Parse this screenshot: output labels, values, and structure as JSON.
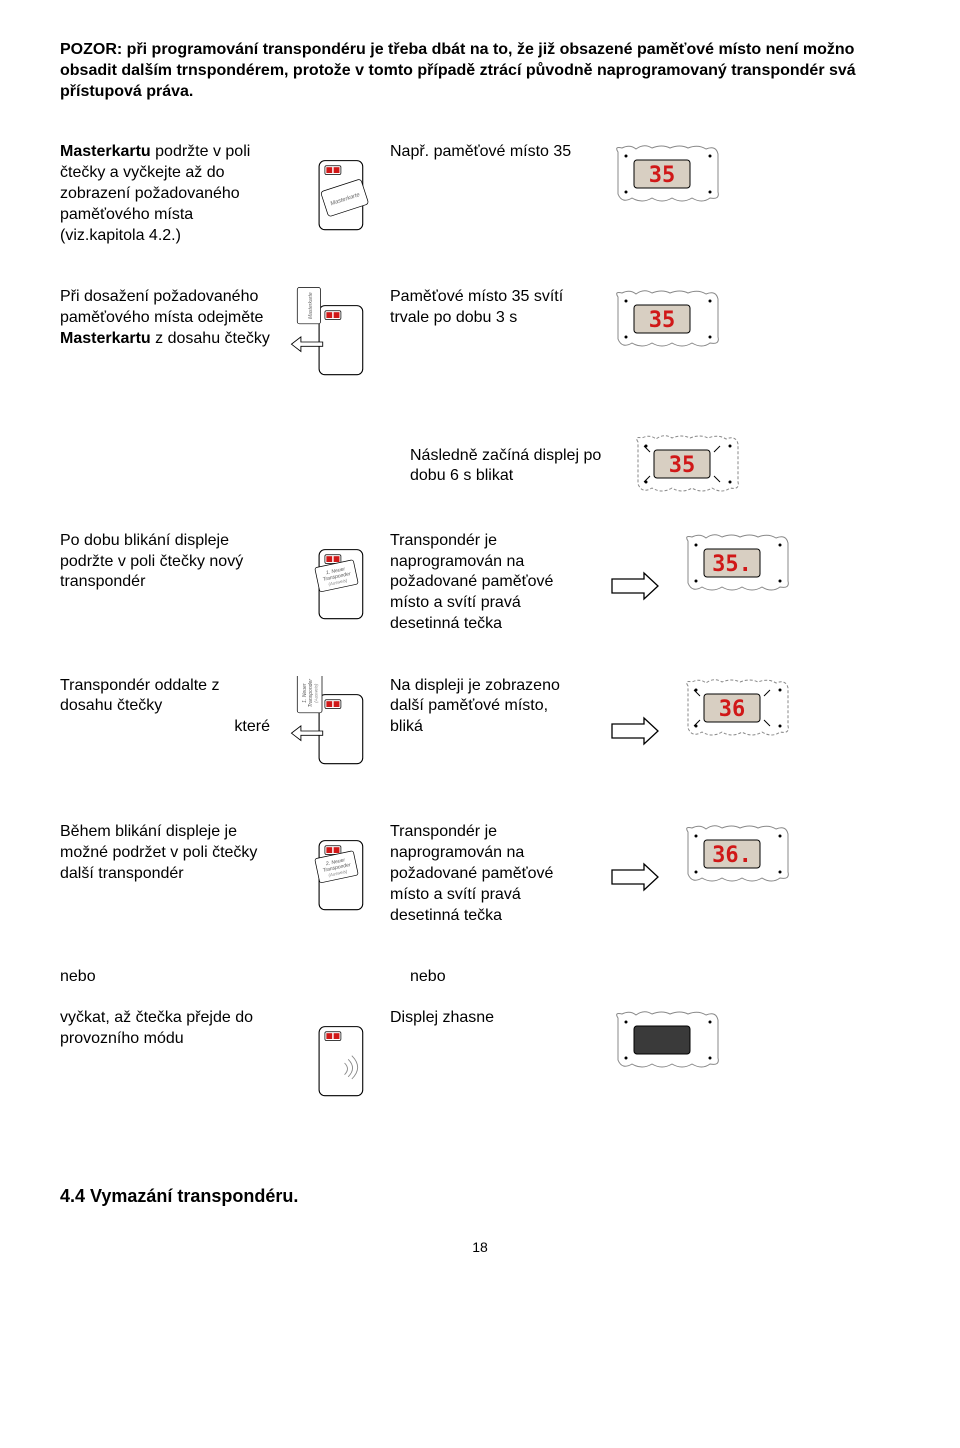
{
  "warning": "POZOR: při programování transpondéru je třeba dbát na to, že již obsazené paměťové místo není možno obsadit dalším trnspondérem, protože v tomto případě ztrácí původně naprogramovaný transpondér svá přístupová práva.",
  "steps": {
    "s1": {
      "left_pre": "Masterkartu",
      "left": " podržte v poli čtečky a vyčkejte až do zobrazení požadovaného paměťového místa (viz.kapitola 4.2.)",
      "right": "Např. paměťové místo 35",
      "card": "Masterkarte",
      "digits": "35"
    },
    "s2": {
      "left_a": "Při dosažení požadovaného paměťového místa odejměte ",
      "left_b": "Masterkartu",
      "left_c": " z dosahu čtečky",
      "right": "Paměťové místo 35 svítí trvale po dobu 3 s",
      "card": "Masterkarte",
      "digits": "35"
    },
    "s3": {
      "right": "Následně začíná displej po dobu 6 s blikat",
      "digits": "35"
    },
    "s4": {
      "left": "Po dobu blikání displeje podržte v poli čtečky nový transpondér",
      "right": "Transpondér je naprogramován na požadované paměťové místo a svítí pravá desetinná tečka",
      "card_a": "1. Neuer",
      "card_b": "Transponder",
      "card_c": "(Ausweis)",
      "digits": "35."
    },
    "s5": {
      "left": "Transpondér oddalte z dosahu čtečky",
      "left_tail": "které",
      "right": "Na displeji je zobrazeno další paměťové místo,",
      "right_tail": "bliká",
      "card_a": "1. Neuer",
      "card_b": "Transponder",
      "card_c": "(Ausweis)",
      "digits": "36"
    },
    "s6": {
      "left": "Během blikání displeje je možné podržet v poli čtečky další transpondér",
      "right": "Transpondér je naprogramován na požadované paměťové místo a svítí pravá desetinná tečka",
      "card_a": "2. Neuer",
      "card_b": "Transponder",
      "card_c": "(Ausweis)",
      "digits": "36."
    },
    "nebo": "nebo",
    "s7": {
      "left": "vyčkat, až čtečka přejde do provozního módu",
      "right": "Displej zhasne"
    }
  },
  "section": "4.4 Vymazání transpondéru.",
  "page": "18",
  "colors": {
    "digit": "#d01818",
    "lcd_bg": "#d8cfc2",
    "reader_led": "#d01818"
  }
}
